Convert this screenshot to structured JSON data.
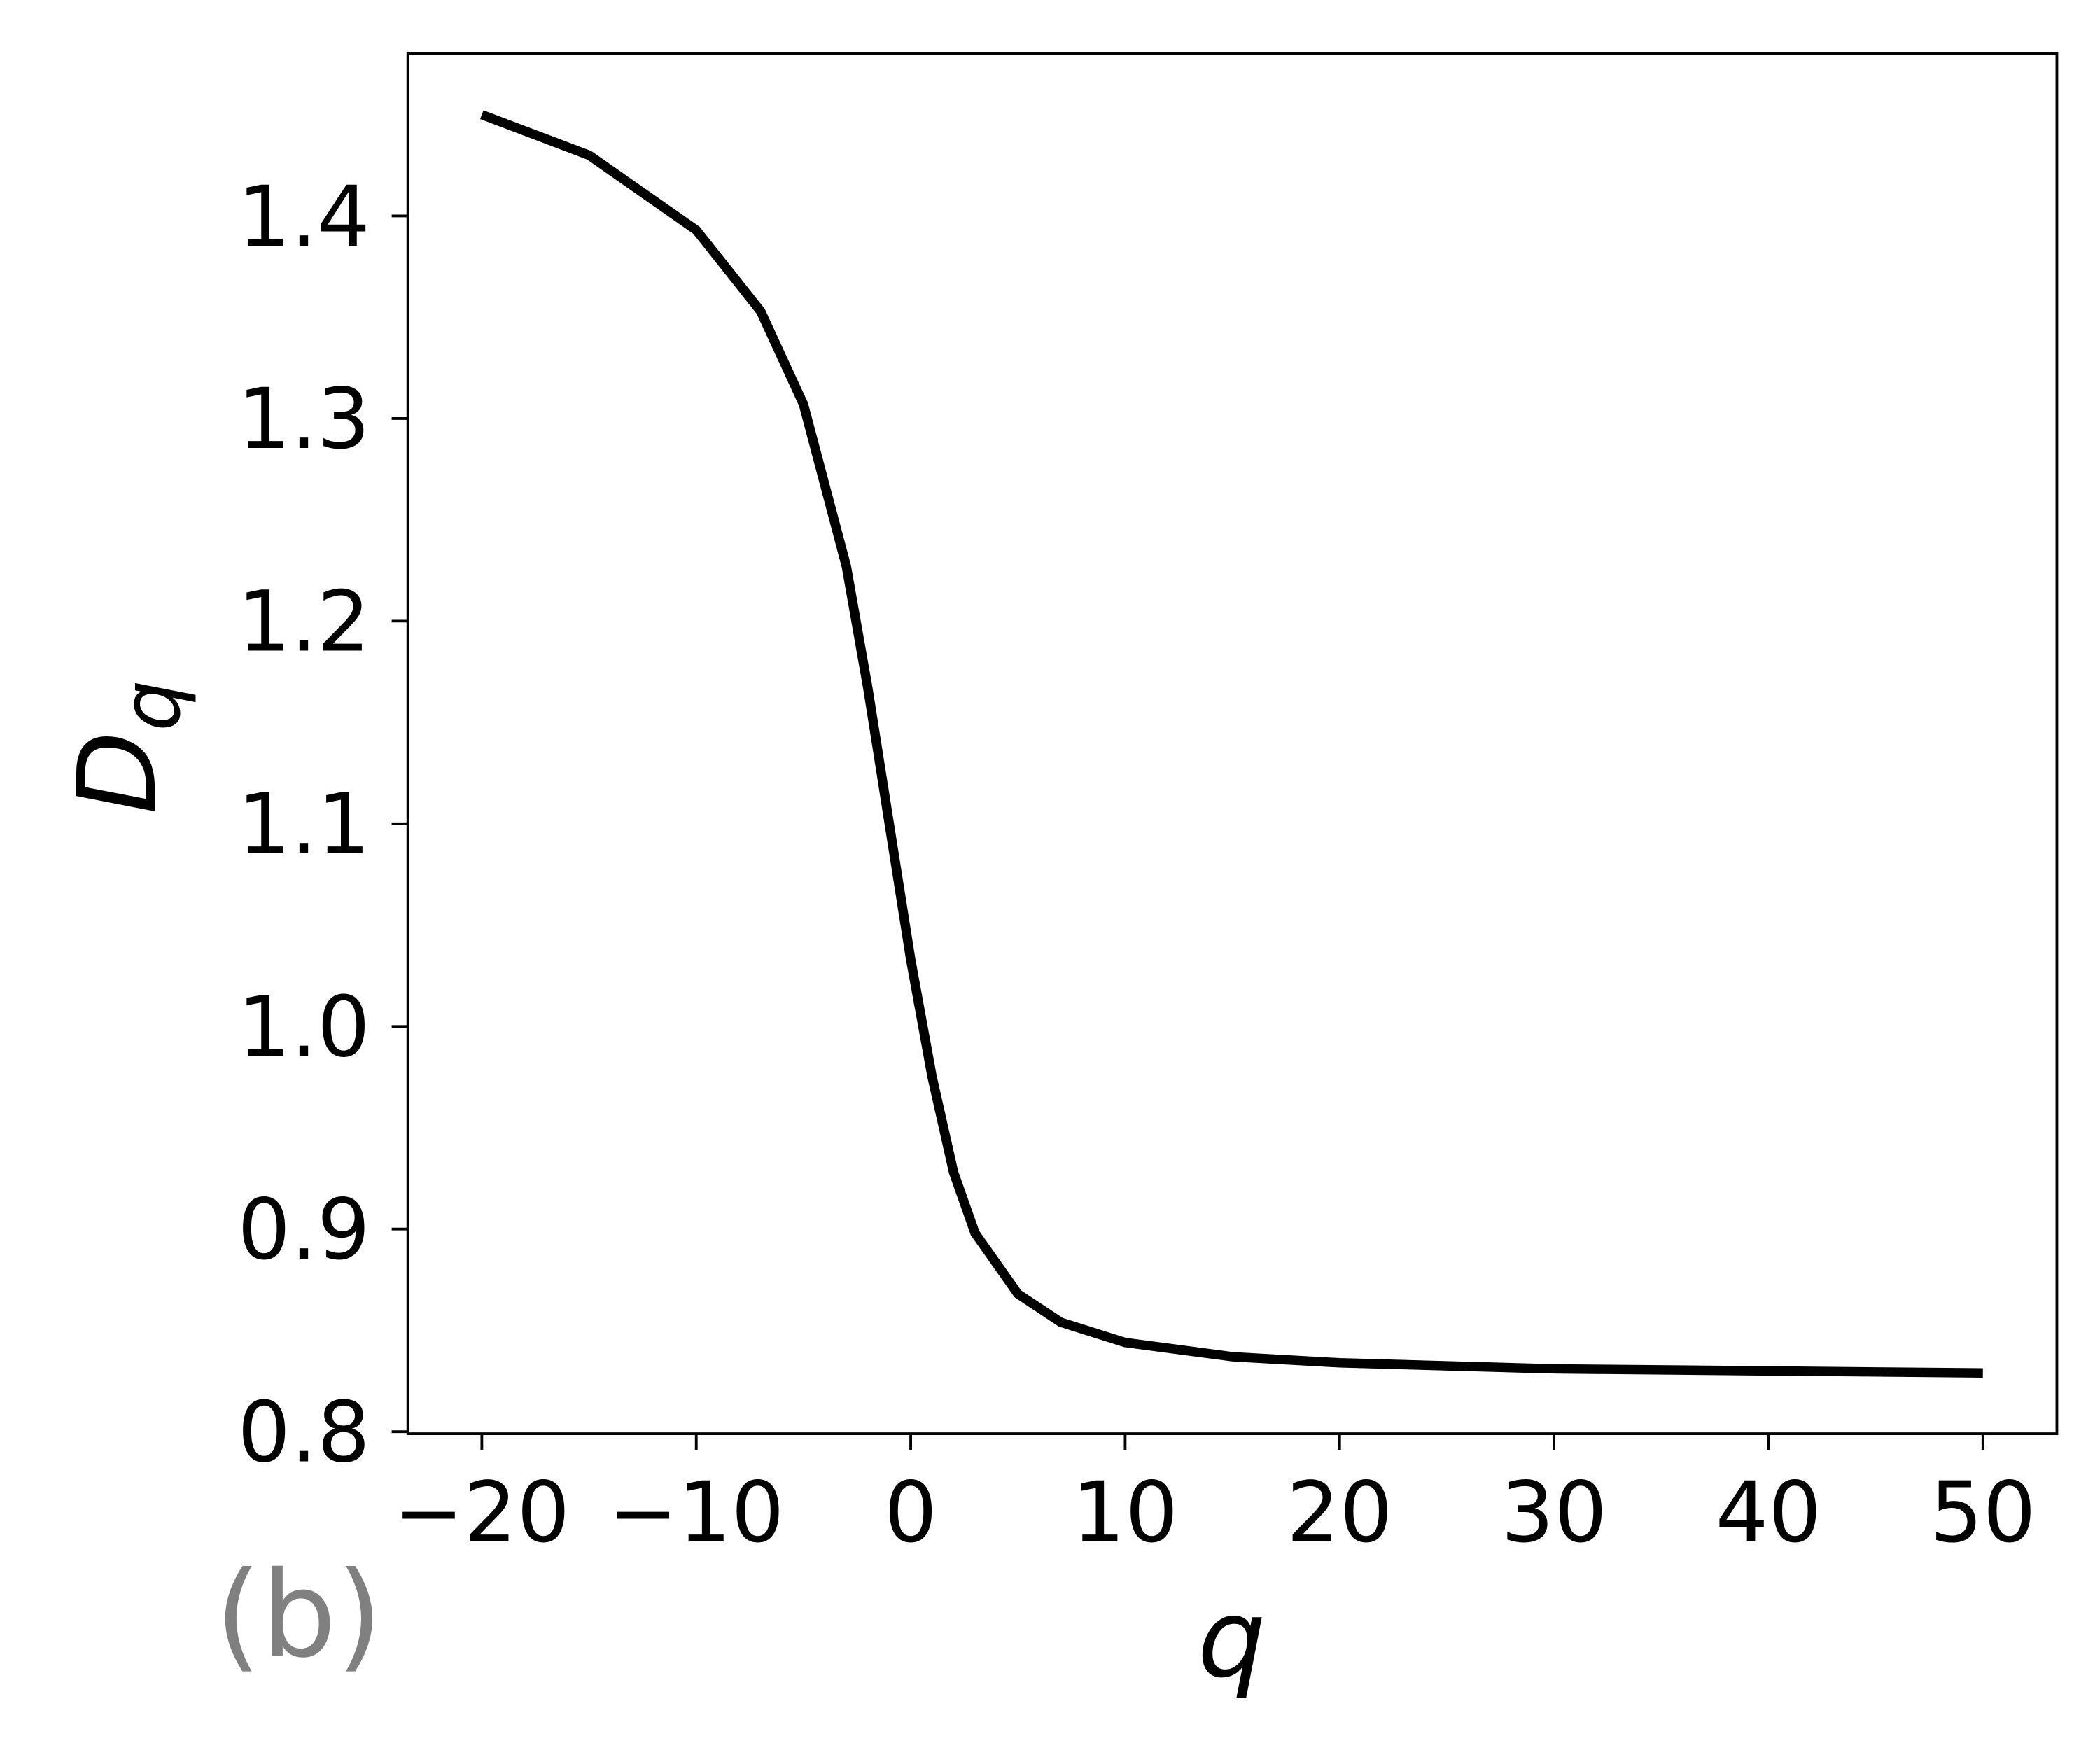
{
  "chart_data": {
    "type": "line",
    "xlabel": "q",
    "ylabel": "Dq",
    "annotation": "(b)",
    "x": [
      -20,
      -15,
      -10,
      -7,
      -5,
      -3,
      -2,
      -1,
      0,
      1,
      2,
      3,
      5,
      7,
      10,
      15,
      20,
      30,
      40,
      50
    ],
    "series": [
      {
        "name": "Dq",
        "color": "#000000",
        "values": [
          1.45,
          1.43,
          1.393,
          1.353,
          1.307,
          1.227,
          1.167,
          1.1,
          1.033,
          0.975,
          0.928,
          0.898,
          0.868,
          0.854,
          0.844,
          0.837,
          0.834,
          0.831,
          0.83,
          0.829
        ]
      }
    ],
    "xlim": [
      -23.45,
      53.45
    ],
    "ylim": [
      0.799,
      1.48
    ],
    "xticks": [
      {
        "value": -20,
        "label": "−20"
      },
      {
        "value": -10,
        "label": "−10"
      },
      0,
      10,
      20,
      30,
      40,
      50
    ],
    "yticks": [
      0.8,
      0.9,
      {
        "value": 1.0,
        "label": "1.0"
      },
      1.1,
      1.2,
      1.3,
      1.4
    ],
    "grid": false
  }
}
